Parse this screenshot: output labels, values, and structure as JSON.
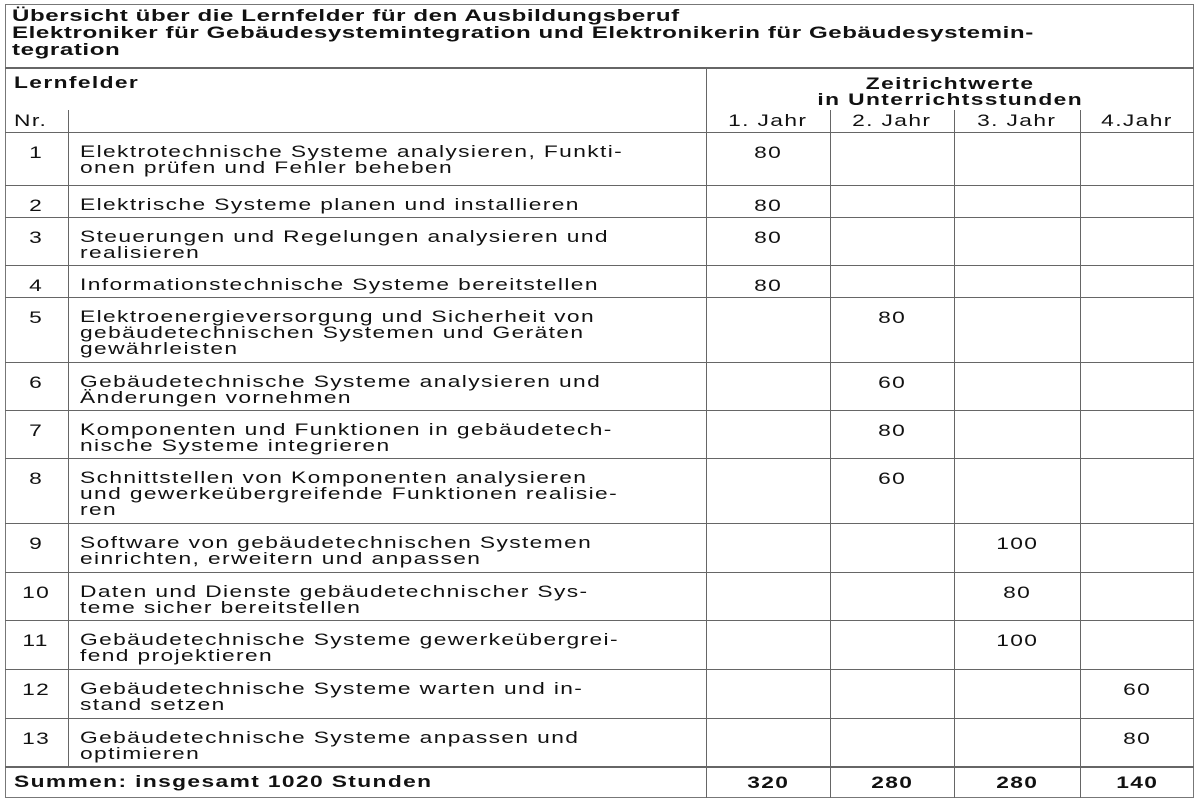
{
  "title": {
    "line1": "Übersicht über die Lernfelder für den Ausbildungsberuf",
    "line2": "Elektroniker für Gebäudesystemintegration und Elektronikerin für Gebäudesystemin-",
    "line3": "tegration"
  },
  "header": {
    "lernfelder": "Lernfelder",
    "nr": "Nr.",
    "zeitrichtwerte": "Zeitrichtwerte",
    "unit": "in Unterrichtsstunden",
    "years": [
      "1. Jahr",
      "2. Jahr",
      "3. Jahr",
      "4.Jahr"
    ]
  },
  "rows": [
    {
      "nr": "1",
      "text": "Elektrotechnische Systeme analysieren, Funkti-\nonen prüfen und Fehler beheben",
      "year": 0,
      "hours": "80"
    },
    {
      "nr": "2",
      "text": "Elektrische Systeme planen und installieren",
      "year": 0,
      "hours": "80"
    },
    {
      "nr": "3",
      "text": "Steuerungen und Regelungen analysieren und\nrealisieren",
      "year": 0,
      "hours": "80"
    },
    {
      "nr": "4",
      "text": "Informationstechnische Systeme bereitstellen",
      "year": 0,
      "hours": "80"
    },
    {
      "nr": "5",
      "text": "Elektroenergieversorgung und Sicherheit von\ngebäudetechnischen Systemen und Geräten\ngewährleisten",
      "year": 1,
      "hours": "80"
    },
    {
      "nr": "6",
      "text": "Gebäudetechnische Systeme analysieren und\nÄnderungen vornehmen",
      "year": 1,
      "hours": "60"
    },
    {
      "nr": "7",
      "text": "Komponenten und Funktionen in gebäudetech-\nnische Systeme integrieren",
      "year": 1,
      "hours": "80"
    },
    {
      "nr": "8",
      "text": "Schnittstellen von Komponenten analysieren\nund gewerkeübergreifende Funktionen realisie-\nren",
      "year": 1,
      "hours": "60"
    },
    {
      "nr": "9",
      "text": "Software von gebäudetechnischen Systemen\neinrichten, erweitern und anpassen",
      "year": 2,
      "hours": "100"
    },
    {
      "nr": "10",
      "text": "Daten und Dienste gebäudetechnischer Sys-\nteme sicher bereitstellen",
      "year": 2,
      "hours": "80"
    },
    {
      "nr": "11",
      "text": "Gebäudetechnische Systeme gewerkeübergrei-\nfend projektieren",
      "year": 2,
      "hours": "100"
    },
    {
      "nr": "12",
      "text": "Gebäudetechnische Systeme warten und in-\nstand setzen",
      "year": 3,
      "hours": "60"
    },
    {
      "nr": "13",
      "text": "Gebäudetechnische Systeme anpassen und\noptimieren",
      "year": 3,
      "hours": "80"
    }
  ],
  "totals": {
    "label": "Summen: insgesamt 1020 Stunden",
    "values": [
      "320",
      "280",
      "280",
      "140"
    ]
  }
}
